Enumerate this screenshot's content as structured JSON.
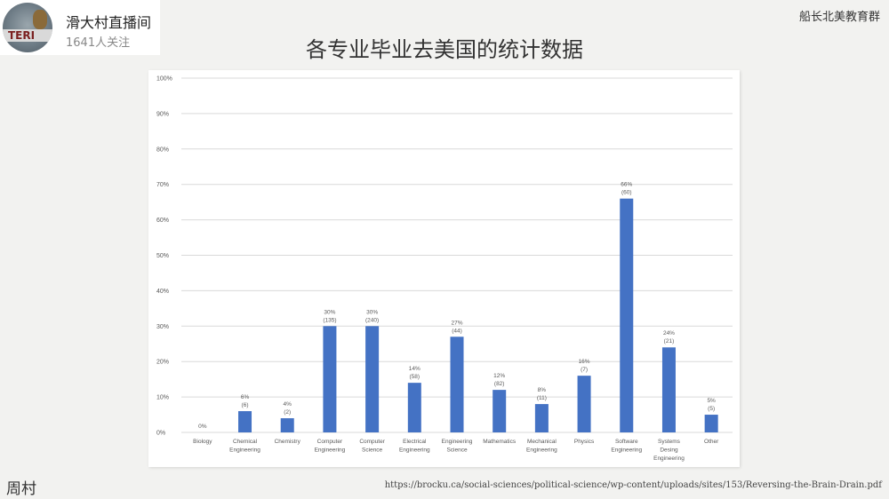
{
  "live": {
    "channel_name": "滑大村直播间",
    "followers": "1641人关注",
    "avatar_text": "TERI"
  },
  "group_name": "船长北美教育群",
  "slide_title": "各专业毕业去美国的统计数据",
  "author": "周村",
  "source_url": "https://brocku.ca/social-sciences/political-science/wp-content/uploads/sites/153/Reversing-the-Brain-Drain.pdf",
  "colors": {
    "bar": "#4472c4",
    "grid": "#d9d9d9",
    "axis_text": "#595959"
  },
  "chart_data": {
    "type": "bar",
    "categories": [
      [
        "Biology"
      ],
      [
        "Chemical",
        "Engineering"
      ],
      [
        "Chemistry"
      ],
      [
        "Computer",
        "Engineering"
      ],
      [
        "Computer",
        "Science"
      ],
      [
        "Electrical",
        "Engineering"
      ],
      [
        "Engineering",
        "Science"
      ],
      [
        "Mathematics"
      ],
      [
        "Mechanical",
        "Engineering"
      ],
      [
        "Physics"
      ],
      [
        "Software",
        "Engineering"
      ],
      [
        "Systems",
        "Desing",
        "Engineering"
      ],
      [
        "Other"
      ]
    ],
    "values": [
      0,
      6,
      4,
      30,
      30,
      14,
      27,
      12,
      8,
      16,
      66,
      24,
      5
    ],
    "value_labels": [
      "0%",
      "6%",
      "4%",
      "30%",
      "30%",
      "14%",
      "27%",
      "12%",
      "8%",
      "16%",
      "66%",
      "24%",
      "5%"
    ],
    "count_labels": [
      "",
      "(6)",
      "(2)",
      "(135)",
      "(240)",
      "(58)",
      "(44)",
      "(82)",
      "(11)",
      "(7)",
      "(60)",
      "(21)",
      "(5)"
    ],
    "ylim": [
      0,
      100
    ],
    "yticks": [
      "0%",
      "10%",
      "20%",
      "30%",
      "40%",
      "50%",
      "60%",
      "70%",
      "80%",
      "90%",
      "100%"
    ],
    "grid": true,
    "title": "",
    "xlabel": "",
    "ylabel": ""
  }
}
